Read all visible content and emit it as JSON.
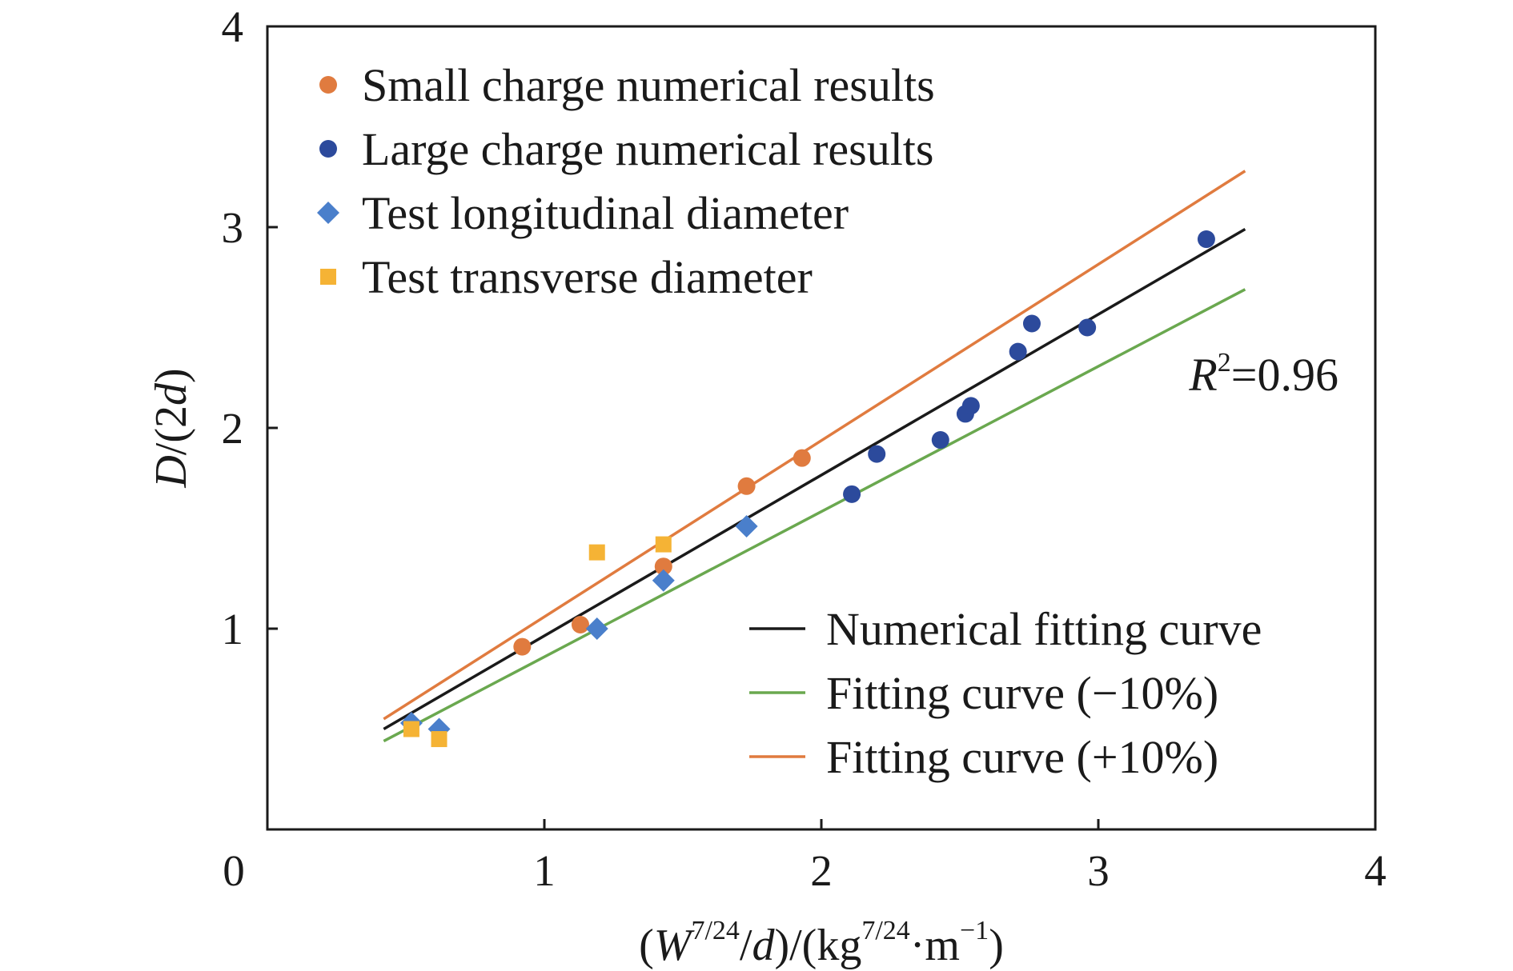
{
  "chart_data": {
    "type": "scatter",
    "title": "",
    "xlim": [
      0,
      4
    ],
    "ylim": [
      0,
      4
    ],
    "x_ticks": [
      "0",
      "1",
      "2",
      "3",
      "4"
    ],
    "y_ticks": [
      "1",
      "2",
      "3",
      "4"
    ],
    "xlabel": {
      "open": "(",
      "var": "W",
      "exp1": "7/24",
      "mid": "/",
      "var2": "d",
      "close": ")/(kg",
      "exp2": "7/24",
      "unit": "·m",
      "exp3": "−1",
      "end": ")"
    },
    "ylabel": {
      "var": "D",
      "mid": "/(2",
      "var2": "d",
      "end": ")"
    },
    "r2": {
      "var": "R",
      "exp": "2",
      "value": "=0.96"
    },
    "grid": false,
    "series": [
      {
        "name": "Small charge numerical results",
        "marker": "circle",
        "color": "#e07b3f",
        "points": [
          [
            0.92,
            0.91
          ],
          [
            1.13,
            1.02
          ],
          [
            1.43,
            1.31
          ],
          [
            1.73,
            1.71
          ],
          [
            1.93,
            1.85
          ]
        ]
      },
      {
        "name": "Large charge numerical results",
        "marker": "circle",
        "color": "#2c4a9c",
        "points": [
          [
            2.11,
            1.67
          ],
          [
            2.2,
            1.87
          ],
          [
            2.43,
            1.94
          ],
          [
            2.52,
            2.07
          ],
          [
            2.54,
            2.11
          ],
          [
            2.71,
            2.38
          ],
          [
            2.76,
            2.52
          ],
          [
            2.96,
            2.5
          ],
          [
            3.39,
            2.94
          ]
        ]
      },
      {
        "name": "Test longitudinal diameter",
        "marker": "diamond",
        "color": "#4a7fcb",
        "points": [
          [
            0.52,
            0.53
          ],
          [
            0.62,
            0.5
          ],
          [
            1.19,
            1.0
          ],
          [
            1.43,
            1.24
          ],
          [
            1.73,
            1.51
          ]
        ]
      },
      {
        "name": "Test transverse diameter",
        "marker": "square",
        "color": "#f5b335",
        "points": [
          [
            0.52,
            0.5
          ],
          [
            0.62,
            0.45
          ],
          [
            1.19,
            1.38
          ],
          [
            1.43,
            1.42
          ]
        ]
      }
    ],
    "lines": [
      {
        "name": "Numerical fitting curve",
        "color": "#1a1a1a",
        "x": [
          0.42,
          3.53
        ],
        "y": [
          0.5,
          2.99
        ]
      },
      {
        "name": "Fitting curve (−10%)",
        "color": "#6aa84f",
        "x": [
          0.42,
          3.53
        ],
        "y": [
          0.44,
          2.69
        ]
      },
      {
        "name": "Fitting curve (+10%)",
        "color": "#e07b3f",
        "x": [
          0.42,
          3.53
        ],
        "y": [
          0.55,
          3.28
        ]
      }
    ],
    "legend_markers_position": "top-left",
    "legend_lines_position": "bottom-right"
  }
}
